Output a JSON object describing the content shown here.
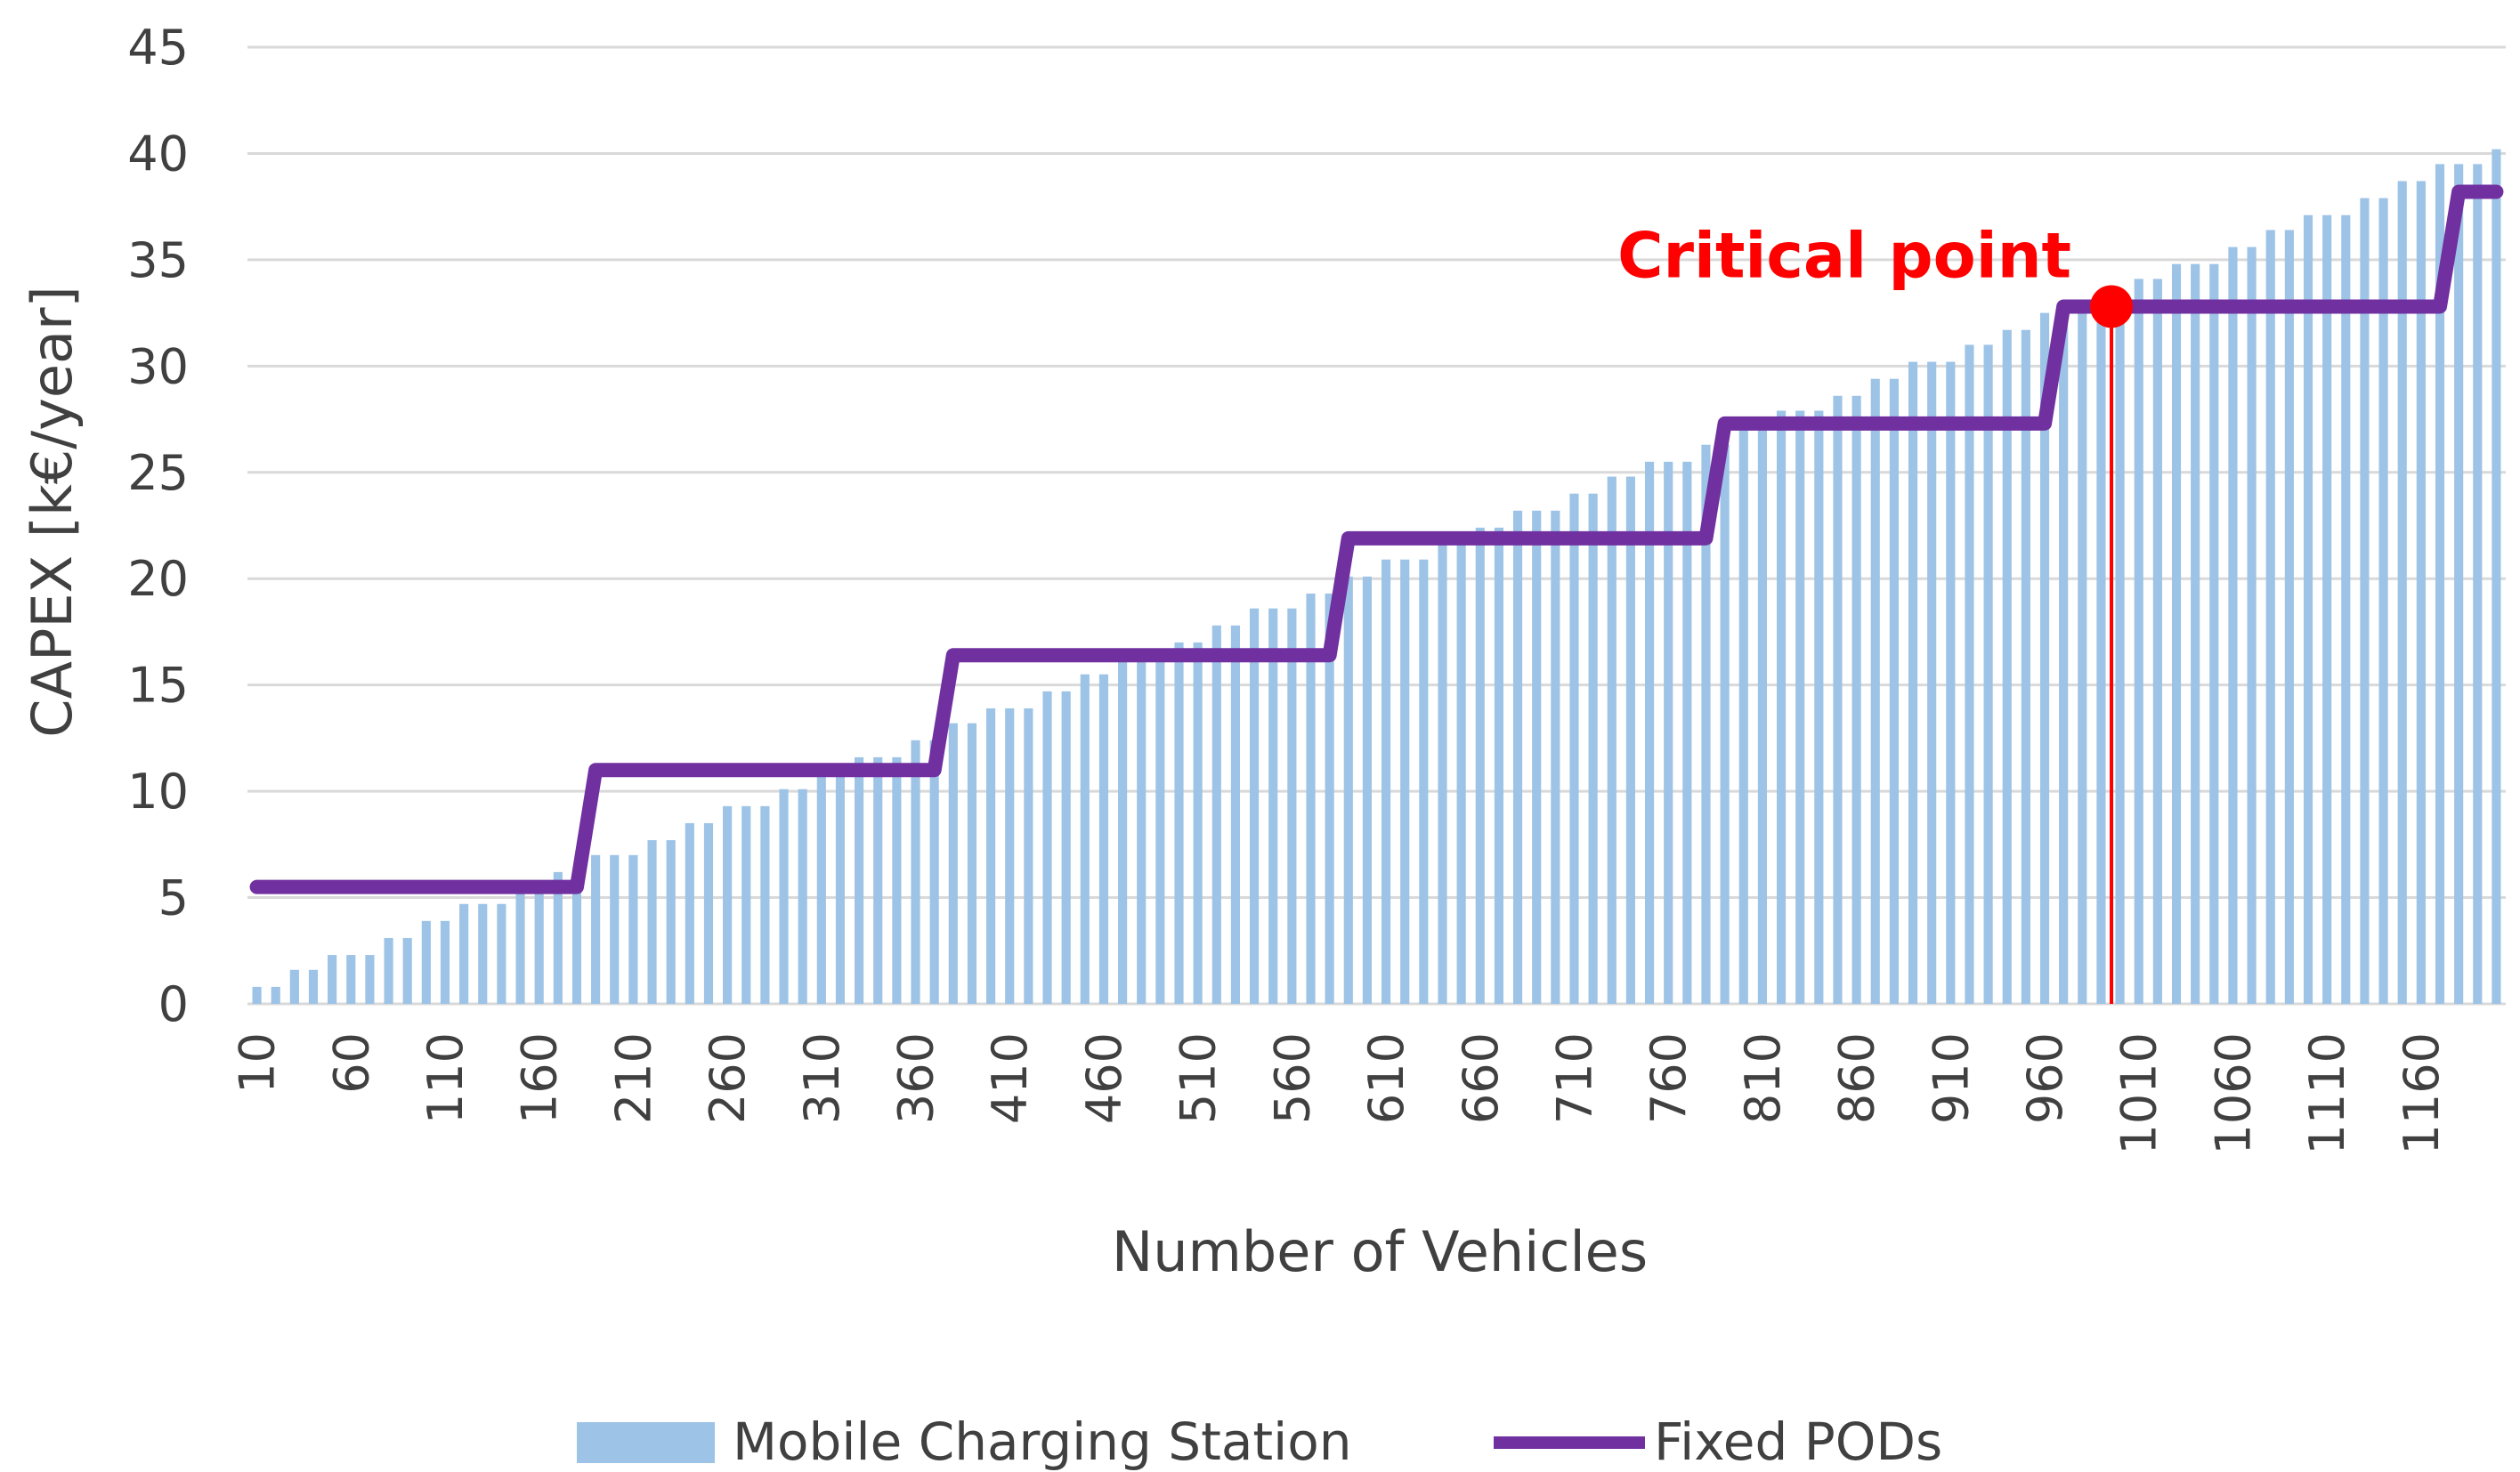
{
  "chart_data": {
    "type": "bar",
    "xlabel": "Number of Vehicles",
    "ylabel": "CAPEX [k€/year]",
    "ylim": [
      0,
      45
    ],
    "yticks": [
      0,
      5,
      10,
      15,
      20,
      25,
      30,
      35,
      40,
      45
    ],
    "xlim": [
      10,
      1200
    ],
    "x_step": 10,
    "xtick_labels": [
      "10",
      "60",
      "110",
      "160",
      "210",
      "260",
      "310",
      "360",
      "410",
      "460",
      "510",
      "560",
      "610",
      "660",
      "710",
      "760",
      "810",
      "860",
      "910",
      "960",
      "1010",
      "1060",
      "1110",
      "1160"
    ],
    "grid": true,
    "legend_position": "bottom",
    "colors": {
      "bars": "#9dc3e6",
      "line": "#7030a0",
      "critical": "#ff0000",
      "grid": "#d9d9d9",
      "text": "#404040"
    },
    "series": [
      {
        "name": "Mobile Charging Station",
        "type": "bar",
        "start_x": 10,
        "step": 10,
        "values": [
          0.8,
          0.8,
          1.6,
          1.6,
          2.3,
          2.3,
          2.3,
          3.1,
          3.1,
          3.9,
          3.9,
          4.7,
          4.7,
          4.7,
          5.4,
          5.4,
          6.2,
          6.2,
          7.0,
          7.0,
          7.0,
          7.7,
          7.7,
          8.5,
          8.5,
          9.3,
          9.3,
          9.3,
          10.1,
          10.1,
          10.8,
          10.8,
          11.6,
          11.6,
          11.6,
          12.4,
          12.4,
          13.2,
          13.2,
          13.9,
          13.9,
          13.9,
          14.7,
          14.7,
          15.5,
          15.5,
          16.3,
          16.3,
          16.3,
          17.0,
          17.0,
          17.8,
          17.8,
          18.6,
          18.6,
          18.6,
          19.3,
          19.3,
          20.1,
          20.1,
          20.9,
          20.9,
          20.9,
          21.7,
          21.7,
          22.4,
          22.4,
          23.2,
          23.2,
          23.2,
          24.0,
          24.0,
          24.8,
          24.8,
          25.5,
          25.5,
          25.5,
          26.3,
          26.3,
          27.1,
          27.1,
          27.9,
          27.9,
          27.9,
          28.6,
          28.6,
          29.4,
          29.4,
          30.2,
          30.2,
          30.2,
          31.0,
          31.0,
          31.7,
          31.7,
          32.5,
          32.5,
          32.5,
          33.3,
          33.3,
          34.1,
          34.1,
          34.8,
          34.8,
          34.8,
          35.6,
          35.6,
          36.4,
          36.4,
          37.1,
          37.1,
          37.1,
          37.9,
          37.9,
          38.7,
          38.7,
          39.5,
          39.5,
          39.5,
          40.2
        ]
      },
      {
        "name": "Fixed PODs",
        "type": "step-line",
        "steps": [
          {
            "from": 10,
            "to": 180,
            "value": 5.5
          },
          {
            "from": 190,
            "to": 370,
            "value": 11.0
          },
          {
            "from": 380,
            "to": 580,
            "value": 16.4
          },
          {
            "from": 590,
            "to": 780,
            "value": 21.9
          },
          {
            "from": 790,
            "to": 960,
            "value": 27.3
          },
          {
            "from": 970,
            "to": 1170,
            "value": 32.8
          },
          {
            "from": 1180,
            "to": 1200,
            "value": 38.2
          }
        ]
      }
    ],
    "annotations": [
      {
        "text": "Critical point",
        "x": 1000,
        "y": 32.8
      }
    ]
  }
}
